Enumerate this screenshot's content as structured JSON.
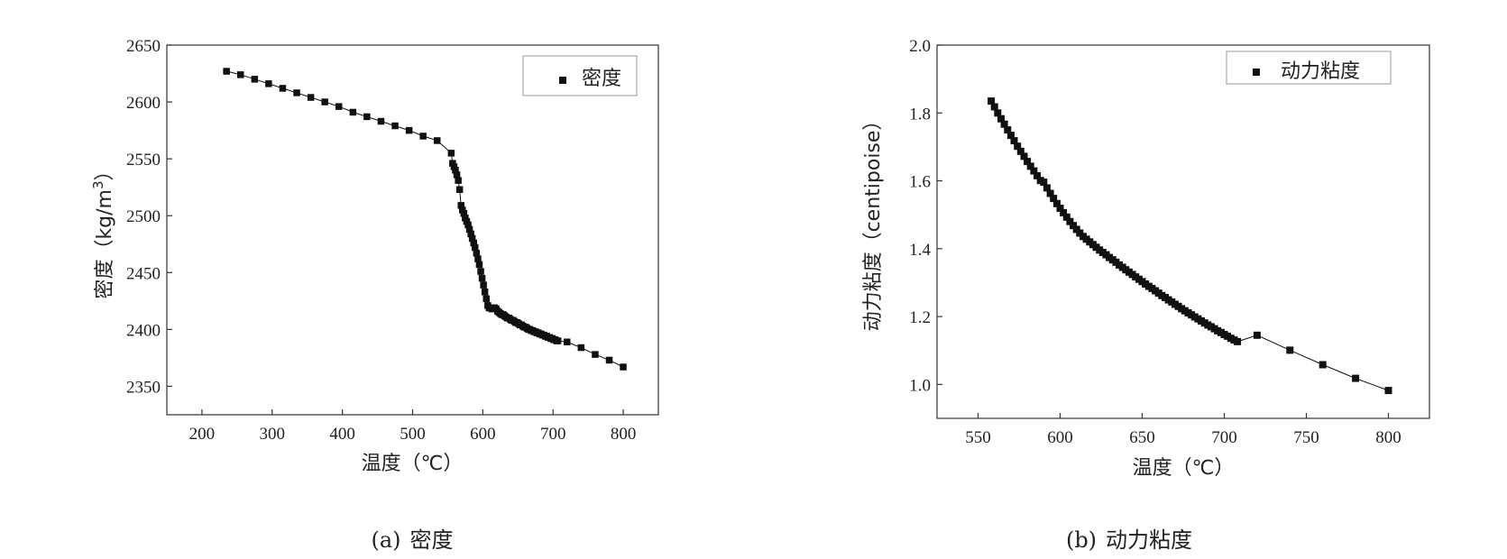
{
  "chart_data": [
    {
      "type": "line",
      "caption_tag": "(a)",
      "caption_text": "密度",
      "xlabel": "温度（℃）",
      "ylabel_main": "密度（kg/m",
      "ylabel_sup": "3",
      "ylabel_end": "）",
      "xlim": [
        150,
        850
      ],
      "ylim": [
        2325,
        2650
      ],
      "xticks": [
        200,
        300,
        400,
        500,
        600,
        700,
        800
      ],
      "yticks": [
        2350,
        2400,
        2450,
        2500,
        2550,
        2600,
        2650
      ],
      "legend_position": "top-right",
      "series": [
        {
          "name": "密度",
          "marker": "square",
          "x": [
            235,
            255,
            275,
            295,
            315,
            335,
            355,
            375,
            395,
            415,
            435,
            455,
            475,
            495,
            515,
            535,
            555,
            557,
            559,
            561,
            563,
            565,
            567,
            569,
            571,
            573,
            575,
            577,
            579,
            581,
            583,
            585,
            587,
            589,
            591,
            593,
            595,
            597,
            599,
            601,
            603,
            605,
            607,
            609,
            611,
            613,
            615,
            617,
            619,
            621,
            623,
            625,
            627,
            629,
            631,
            633,
            635,
            637,
            639,
            641,
            643,
            645,
            647,
            649,
            651,
            653,
            655,
            657,
            659,
            661,
            663,
            665,
            667,
            669,
            671,
            673,
            675,
            677,
            679,
            681,
            683,
            685,
            687,
            689,
            691,
            693,
            695,
            697,
            699,
            701,
            703,
            705,
            707,
            720,
            740,
            760,
            780,
            800
          ],
          "y": [
            2627,
            2624,
            2620,
            2616,
            2612,
            2608,
            2604,
            2600,
            2596,
            2591,
            2587,
            2583,
            2579,
            2575,
            2570,
            2566,
            2555,
            2546,
            2543,
            2540,
            2536,
            2531,
            2523,
            2509,
            2505,
            2502,
            2498,
            2495,
            2492,
            2488,
            2484,
            2480,
            2476,
            2472,
            2467,
            2462,
            2457,
            2451,
            2445,
            2439,
            2433,
            2427,
            2421,
            2419,
            2419,
            2418,
            2419,
            2419,
            2418,
            2416,
            2415,
            2414,
            2413,
            2413,
            2412,
            2411,
            2410,
            2410,
            2409,
            2408,
            2408,
            2407,
            2406,
            2406,
            2405,
            2404,
            2404,
            2403,
            2402,
            2402,
            2401,
            2400,
            2400,
            2399,
            2399,
            2398,
            2398,
            2397,
            2397,
            2396,
            2396,
            2395,
            2395,
            2394,
            2394,
            2393,
            2393,
            2392,
            2392,
            2391,
            2391,
            2390,
            2390,
            2389,
            2384,
            2378,
            2373,
            2367
          ]
        }
      ]
    },
    {
      "type": "line",
      "caption_tag": "(b)",
      "caption_text": "动力粘度",
      "xlabel": "温度（℃）",
      "ylabel_main": "动力粘度（centipoise）",
      "xlim": [
        525,
        825
      ],
      "ylim": [
        0.9,
        2.0
      ],
      "xticks": [
        550,
        600,
        650,
        700,
        750,
        800
      ],
      "yticks": [
        1.0,
        1.2,
        1.4,
        1.6,
        1.8,
        2.0
      ],
      "ytick_labels": [
        "1.0",
        "1.2",
        "1.4",
        "1.6",
        "1.8",
        "2.0"
      ],
      "legend_position": "top-right",
      "series": [
        {
          "name": "动力粘度",
          "marker": "square",
          "x": [
            558,
            560,
            562,
            564,
            566,
            568,
            570,
            572,
            574,
            576,
            578,
            580,
            582,
            584,
            586,
            588,
            590,
            592,
            594,
            596,
            598,
            600,
            602,
            604,
            606,
            608,
            610,
            612,
            614,
            616,
            618,
            620,
            622,
            624,
            626,
            628,
            630,
            632,
            634,
            636,
            638,
            640,
            642,
            644,
            646,
            648,
            650,
            652,
            654,
            656,
            658,
            660,
            662,
            664,
            666,
            668,
            670,
            672,
            674,
            676,
            678,
            680,
            682,
            684,
            686,
            688,
            690,
            692,
            694,
            696,
            698,
            700,
            702,
            704,
            706,
            708,
            720,
            740,
            760,
            780,
            800
          ],
          "y": [
            1.835,
            1.818,
            1.8,
            1.783,
            1.767,
            1.75,
            1.734,
            1.718,
            1.702,
            1.687,
            1.672,
            1.657,
            1.643,
            1.629,
            1.615,
            1.601,
            1.596,
            1.579,
            1.563,
            1.548,
            1.533,
            1.519,
            1.506,
            1.493,
            1.48,
            1.468,
            1.457,
            1.446,
            1.436,
            1.428,
            1.42,
            1.412,
            1.404,
            1.396,
            1.389,
            1.382,
            1.374,
            1.367,
            1.36,
            1.352,
            1.345,
            1.338,
            1.331,
            1.324,
            1.317,
            1.31,
            1.303,
            1.296,
            1.289,
            1.283,
            1.276,
            1.269,
            1.262,
            1.256,
            1.249,
            1.243,
            1.236,
            1.23,
            1.223,
            1.217,
            1.211,
            1.205,
            1.199,
            1.193,
            1.187,
            1.181,
            1.175,
            1.17,
            1.164,
            1.158,
            1.153,
            1.147,
            1.142,
            1.136,
            1.131,
            1.126,
            1.145,
            1.101,
            1.058,
            1.018,
            0.982
          ]
        }
      ]
    }
  ]
}
